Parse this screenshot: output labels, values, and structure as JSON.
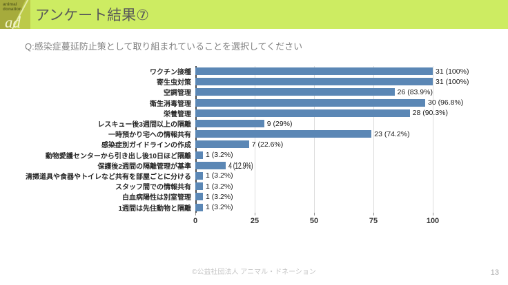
{
  "header": {
    "logo": {
      "line1": "animal",
      "line2": "donation",
      "mark": "ad"
    },
    "title": "アンケート結果⑦"
  },
  "question": "Q:感染症蔓延防止策として取り組まれていることを選択してください",
  "chart_data": {
    "type": "bar",
    "orientation": "horizontal",
    "title": "",
    "xlabel": "",
    "ylabel": "",
    "xlim": [
      0,
      100
    ],
    "xticks": [
      0,
      25,
      50,
      75,
      100
    ],
    "grid": true,
    "legend": false,
    "bar_color": "#5b87b5",
    "categories": [
      "ワクチン接種",
      "寄生虫対策",
      "空調管理",
      "衛生消毒管理",
      "栄養管理",
      "レスキュー後3週間以上の隔離",
      "一時預かり宅への情報共有",
      "感染症別ガイドラインの作成",
      "動物愛護センターから引き出し後10日ほど隔離",
      "保護後2週間の隔離管理が基準",
      "清掃道具や食器やトイレなど共有を部屋ごとに分ける",
      "スタッフ間での情報共有",
      "白血病陽性は別室管理",
      "1週間は先住動物と隔離"
    ],
    "values": [
      31,
      31,
      26,
      30,
      28,
      9,
      23,
      7,
      1,
      4,
      1,
      1,
      1,
      1
    ],
    "percents": [
      100,
      100,
      83.9,
      96.8,
      90.3,
      29,
      74.2,
      22.6,
      3.2,
      12.9,
      3.2,
      3.2,
      3.2,
      3.2
    ],
    "data_labels": [
      "31 (100%)",
      "31 (100%)",
      "26 (83.9%)",
      "30 (96.8%)",
      "28 (90.3%)",
      "9 (29%)",
      "23 (74.2%)",
      "7 (22.6%)",
      "1 (3.2%)",
      "4 (12.9%)",
      "1 (3.2%)",
      "1 (3.2%)",
      "1 (3.2%)",
      "1 (3.2%)"
    ],
    "narrow_label_index": 9
  },
  "footer": {
    "copyright": "©公益社団法人 アニマル・ドネーション",
    "page_number": "13"
  }
}
